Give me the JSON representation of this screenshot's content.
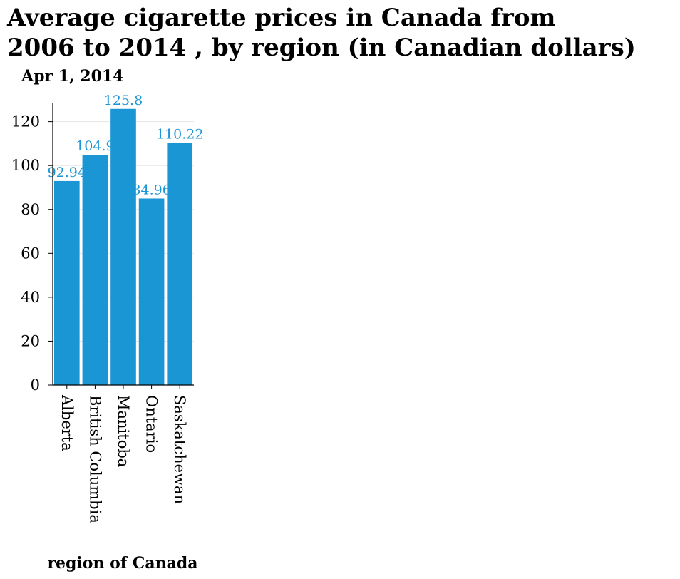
{
  "chart_data": {
    "type": "bar",
    "title_lines": [
      "Average cigarette prices in Canada from",
      "2006 to 2014 , by region (in Canadian dollars)"
    ],
    "ylabel": "Apr 1, 2014",
    "xlabel": "region of Canada",
    "categories": [
      "Alberta",
      "British Columbia",
      "Manitoba",
      "Ontario",
      "Saskatchewan"
    ],
    "values": [
      92.94,
      104.9,
      125.8,
      84.96,
      110.22
    ],
    "value_labels": [
      "92.94",
      "104.9",
      "125.8",
      "84.96",
      "110.22"
    ],
    "yticks": [
      0,
      20,
      40,
      60,
      80,
      100,
      120
    ],
    "ylim": [
      0,
      128
    ],
    "grid": true,
    "bar_color": "#1a96d4",
    "label_color": "#1a96d4",
    "grid_color": "#e5e5e5"
  }
}
